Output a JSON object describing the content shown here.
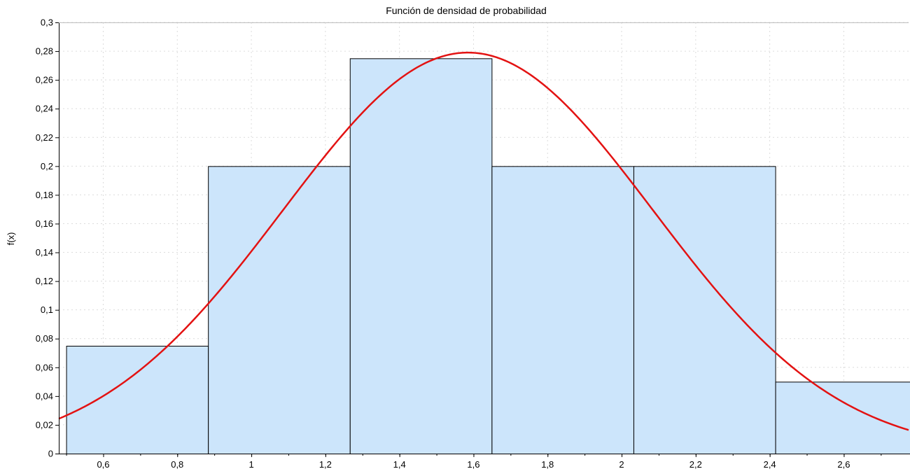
{
  "chart_data": {
    "type": "bar",
    "title": "Función de densidad de probabilidad",
    "xlabel": "",
    "ylabel": "f(x)",
    "xlim": [
      0.48,
      2.775
    ],
    "ylim": [
      0,
      0.3
    ],
    "grid": true,
    "histogram": {
      "bin_edges": [
        0.5,
        0.883,
        1.266,
        1.649,
        2.032,
        2.415,
        2.798
      ],
      "values": [
        0.075,
        0.2,
        0.275,
        0.2,
        0.2,
        0.05
      ],
      "fill_color": "#cce5fb",
      "edge_color": "#000000"
    },
    "density_curve": {
      "distribution": "normal",
      "mean": 1.585,
      "std": 0.5,
      "peak": 0.279,
      "color": "#e31212"
    },
    "x_ticks": [
      {
        "value": 0.6,
        "label": "0,6"
      },
      {
        "value": 0.8,
        "label": "0,8"
      },
      {
        "value": 1.0,
        "label": "1"
      },
      {
        "value": 1.2,
        "label": "1,2"
      },
      {
        "value": 1.4,
        "label": "1,4"
      },
      {
        "value": 1.6,
        "label": "1,6"
      },
      {
        "value": 1.8,
        "label": "1,8"
      },
      {
        "value": 2.0,
        "label": "2"
      },
      {
        "value": 2.2,
        "label": "2,2"
      },
      {
        "value": 2.4,
        "label": "2,4"
      },
      {
        "value": 2.6,
        "label": "2,6"
      }
    ],
    "y_ticks": [
      {
        "value": 0,
        "label": "0"
      },
      {
        "value": 0.02,
        "label": "0,02"
      },
      {
        "value": 0.04,
        "label": "0,04"
      },
      {
        "value": 0.06,
        "label": "0,06"
      },
      {
        "value": 0.08,
        "label": "0,08"
      },
      {
        "value": 0.1,
        "label": "0,1"
      },
      {
        "value": 0.12,
        "label": "0,12"
      },
      {
        "value": 0.14,
        "label": "0,14"
      },
      {
        "value": 0.16,
        "label": "0,16"
      },
      {
        "value": 0.18,
        "label": "0,18"
      },
      {
        "value": 0.2,
        "label": "0,2"
      },
      {
        "value": 0.22,
        "label": "0,22"
      },
      {
        "value": 0.24,
        "label": "0,24"
      },
      {
        "value": 0.26,
        "label": "0,26"
      },
      {
        "value": 0.28,
        "label": "0,28"
      },
      {
        "value": 0.3,
        "label": "0,3"
      }
    ]
  }
}
